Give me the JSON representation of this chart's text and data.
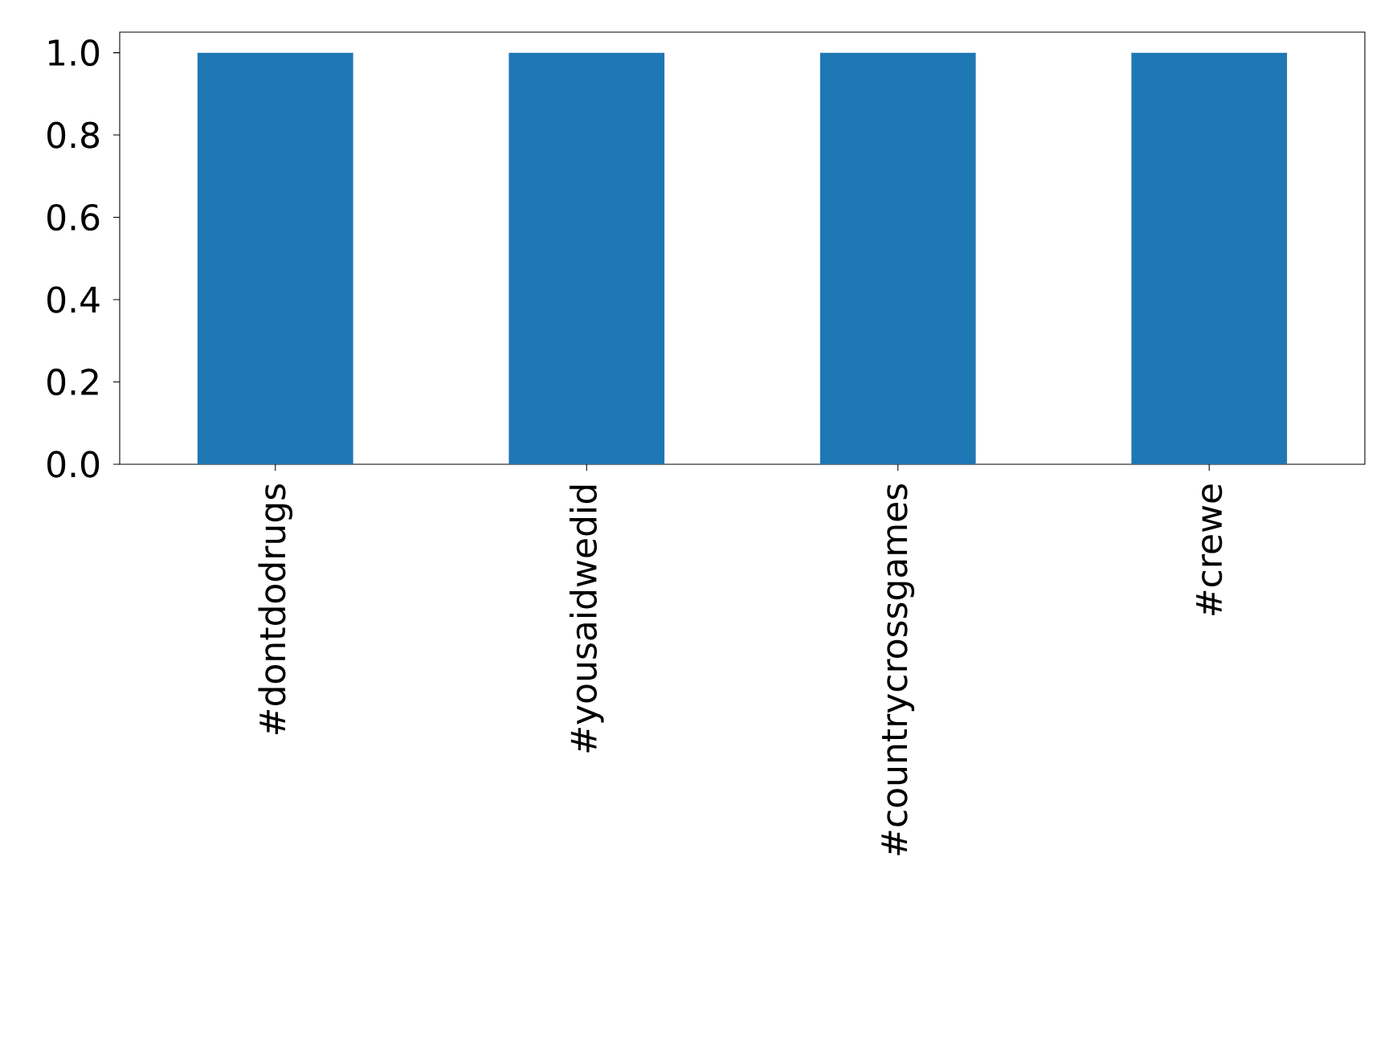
{
  "chart_data": {
    "type": "bar",
    "categories": [
      "#dontdodrugs",
      "#yousaidwedid",
      "#countrycrossgames",
      "#crewe"
    ],
    "values": [
      1.0,
      1.0,
      1.0,
      1.0
    ],
    "color": "#1f77b4",
    "ylim": [
      0,
      1.05
    ],
    "yticks": [
      {
        "value": 0,
        "label": "0.0"
      },
      {
        "value": 0.2,
        "label": "0.2"
      },
      {
        "value": 0.4,
        "label": "0.4"
      },
      {
        "value": 0.6,
        "label": "0.6"
      },
      {
        "value": 0.8,
        "label": "0.8"
      },
      {
        "value": 1.0,
        "label": "1.0"
      }
    ]
  }
}
